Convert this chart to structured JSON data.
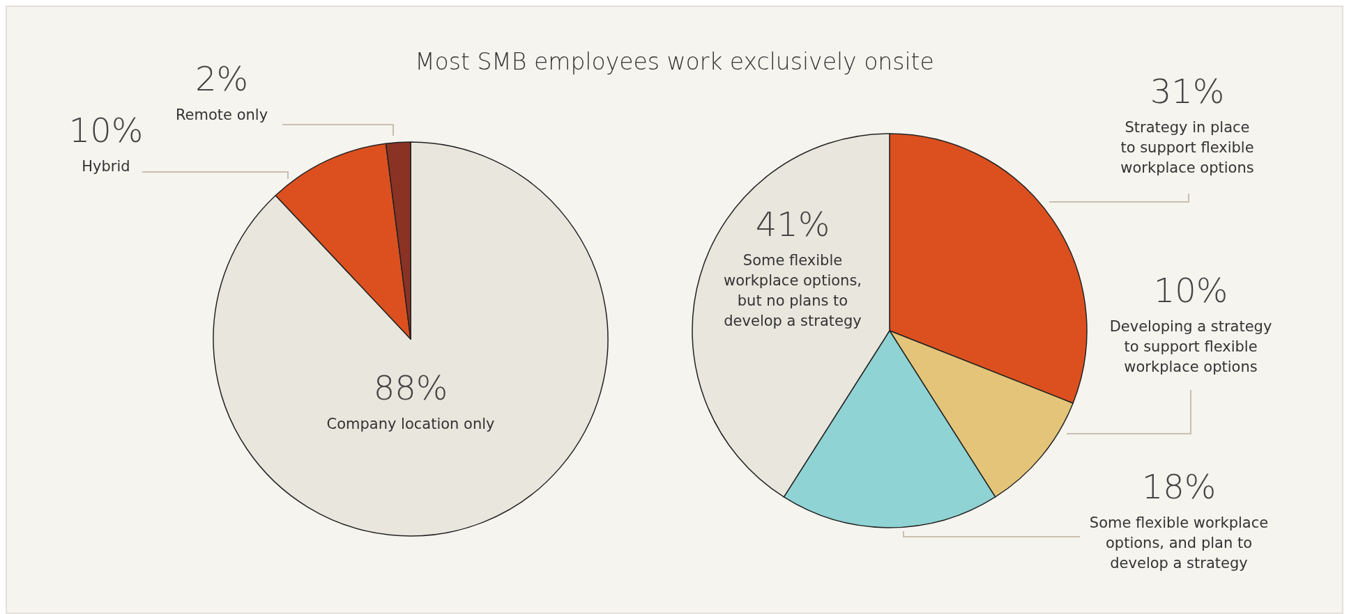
{
  "chart_data": [
    {
      "type": "pie",
      "title": "Most SMB employees work exclusively onsite",
      "categories": [
        "Company location only",
        "Hybrid",
        "Remote only"
      ],
      "values": [
        88,
        10,
        2
      ],
      "value_labels": [
        "88%",
        "10%",
        "2%"
      ],
      "colors": [
        "#e9e6dd",
        "#dc5020",
        "#8a3324"
      ]
    },
    {
      "type": "pie",
      "categories": [
        "Strategy in place to support flexible workplace options",
        "Developing a strategy to support flexible workplace options",
        "Some flexible workplace options, and plan to develop a strategy",
        "Some flexible workplace options, but no plans to develop a strategy"
      ],
      "values": [
        31,
        10,
        18,
        41
      ],
      "value_labels": [
        "31%",
        "10%",
        "18%",
        "41%"
      ],
      "colors": [
        "#dc5020",
        "#e4c478",
        "#8fd3d4",
        "#e9e6dd"
      ]
    }
  ]
}
